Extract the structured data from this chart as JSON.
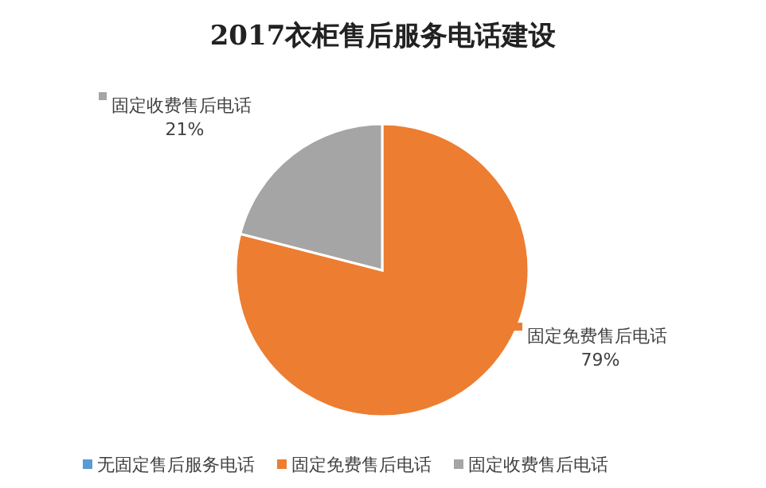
{
  "chart_data": {
    "type": "pie",
    "title": "2017衣柜售后服务电话建设",
    "categories": [
      "无固定售后服务电话",
      "固定免费售后电话",
      "固定收费售后电话"
    ],
    "values": [
      0,
      79,
      21
    ],
    "colors": [
      "#5b9bd5",
      "#ed7d31",
      "#a5a5a5"
    ],
    "value_labels": [
      null,
      "79%",
      "21%"
    ],
    "legend": "bottom"
  }
}
